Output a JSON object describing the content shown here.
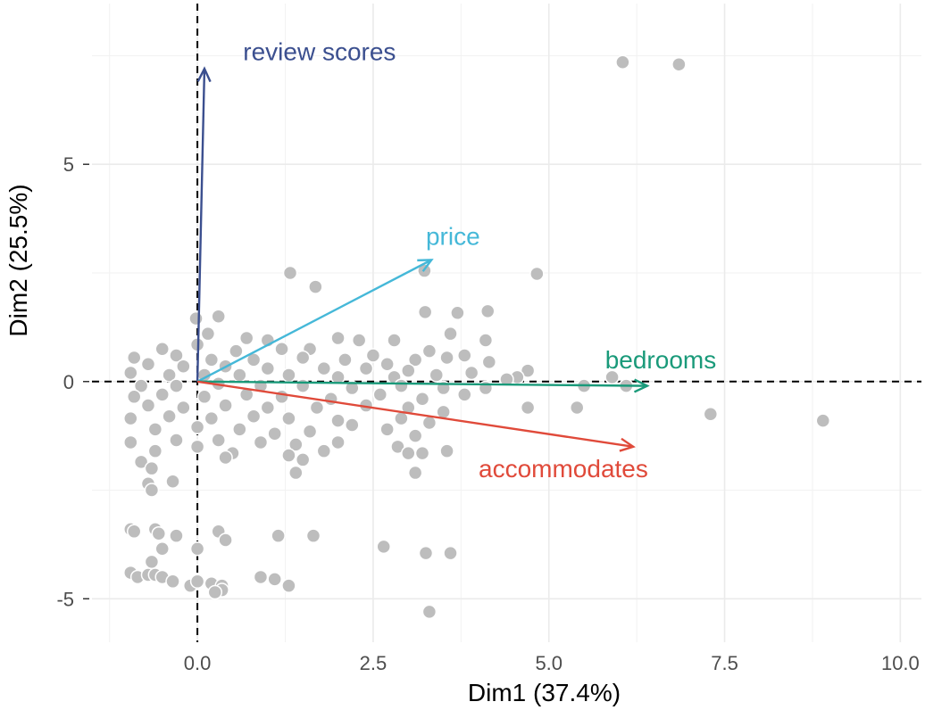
{
  "chart_data": {
    "type": "scatter",
    "title": "",
    "xlabel": "Dim1 (37.4%)",
    "ylabel": "Dim2 (25.5%)",
    "xlim": [
      -1.5,
      10.3
    ],
    "ylim": [
      -6.0,
      8.7
    ],
    "x_ticks": [
      0.0,
      2.5,
      5.0,
      7.5,
      10.0
    ],
    "x_tick_labels": [
      "0.0",
      "2.5",
      "5.0",
      "7.5",
      "10.0"
    ],
    "y_ticks": [
      -5,
      0,
      5
    ],
    "y_tick_labels": [
      "-5",
      "0",
      "5"
    ],
    "grid": true,
    "reference_lines": {
      "x": 0,
      "y": 0,
      "style": "dashed"
    },
    "point_color": "#bdbdbd",
    "points": [
      [
        6.05,
        7.35
      ],
      [
        6.85,
        7.3
      ],
      [
        1.32,
        2.5
      ],
      [
        1.68,
        2.18
      ],
      [
        3.23,
        2.55
      ],
      [
        4.83,
        2.48
      ],
      [
        3.24,
        1.6
      ],
      [
        3.7,
        1.58
      ],
      [
        4.13,
        1.62
      ],
      [
        -0.02,
        1.45
      ],
      [
        0.3,
        1.5
      ],
      [
        0.15,
        1.1
      ],
      [
        0.7,
        1.0
      ],
      [
        1.0,
        0.95
      ],
      [
        2.0,
        1.0
      ],
      [
        2.3,
        0.95
      ],
      [
        2.8,
        0.95
      ],
      [
        3.6,
        1.1
      ],
      [
        4.1,
        0.95
      ],
      [
        0.0,
        0.85
      ],
      [
        0.55,
        0.7
      ],
      [
        1.2,
        0.75
      ],
      [
        1.6,
        0.75
      ],
      [
        2.5,
        0.6
      ],
      [
        3.3,
        0.7
      ],
      [
        3.8,
        0.6
      ],
      [
        -0.5,
        0.75
      ],
      [
        -0.9,
        0.55
      ],
      [
        -0.3,
        0.6
      ],
      [
        0.2,
        0.5
      ],
      [
        0.8,
        0.5
      ],
      [
        1.5,
        0.55
      ],
      [
        2.1,
        0.5
      ],
      [
        2.7,
        0.4
      ],
      [
        3.1,
        0.5
      ],
      [
        3.55,
        0.55
      ],
      [
        4.15,
        0.45
      ],
      [
        4.7,
        0.25
      ],
      [
        4.55,
        0.1
      ],
      [
        5.9,
        0.1
      ],
      [
        -0.7,
        0.4
      ],
      [
        -0.2,
        0.35
      ],
      [
        0.4,
        0.35
      ],
      [
        1.0,
        0.3
      ],
      [
        1.8,
        0.3
      ],
      [
        2.4,
        0.3
      ],
      [
        3.0,
        0.25
      ],
      [
        3.9,
        0.2
      ],
      [
        -0.95,
        0.2
      ],
      [
        -0.4,
        0.15
      ],
      [
        0.1,
        0.15
      ],
      [
        0.6,
        0.15
      ],
      [
        1.3,
        0.15
      ],
      [
        2.0,
        0.1
      ],
      [
        2.8,
        0.1
      ],
      [
        3.4,
        0.15
      ],
      [
        4.4,
        0.05
      ],
      [
        -0.8,
        -0.1
      ],
      [
        -0.3,
        -0.1
      ],
      [
        0.3,
        -0.05
      ],
      [
        0.9,
        -0.1
      ],
      [
        1.5,
        -0.1
      ],
      [
        2.2,
        -0.15
      ],
      [
        2.9,
        -0.1
      ],
      [
        3.5,
        -0.15
      ],
      [
        4.1,
        -0.15
      ],
      [
        5.5,
        -0.1
      ],
      [
        6.1,
        -0.1
      ],
      [
        -0.9,
        -0.35
      ],
      [
        -0.5,
        -0.3
      ],
      [
        0.1,
        -0.35
      ],
      [
        0.7,
        -0.3
      ],
      [
        1.2,
        -0.35
      ],
      [
        1.9,
        -0.4
      ],
      [
        2.6,
        -0.3
      ],
      [
        3.2,
        -0.4
      ],
      [
        3.8,
        -0.3
      ],
      [
        -0.7,
        -0.55
      ],
      [
        -0.2,
        -0.6
      ],
      [
        0.4,
        -0.55
      ],
      [
        1.0,
        -0.6
      ],
      [
        1.7,
        -0.6
      ],
      [
        2.4,
        -0.55
      ],
      [
        3.0,
        -0.6
      ],
      [
        3.5,
        -0.7
      ],
      [
        4.7,
        -0.6
      ],
      [
        5.4,
        -0.6
      ],
      [
        7.3,
        -0.75
      ],
      [
        8.9,
        -0.9
      ],
      [
        -0.95,
        -0.85
      ],
      [
        -0.4,
        -0.8
      ],
      [
        0.2,
        -0.85
      ],
      [
        0.8,
        -0.8
      ],
      [
        1.3,
        -0.85
      ],
      [
        2.0,
        -0.9
      ],
      [
        2.9,
        -0.85
      ],
      [
        3.3,
        -0.95
      ],
      [
        -0.6,
        -1.1
      ],
      [
        0.0,
        -1.05
      ],
      [
        0.6,
        -1.1
      ],
      [
        1.1,
        -1.2
      ],
      [
        1.6,
        -1.15
      ],
      [
        2.2,
        -1.0
      ],
      [
        2.7,
        -1.1
      ],
      [
        3.1,
        -1.25
      ],
      [
        -0.95,
        -1.4
      ],
      [
        -0.3,
        -1.35
      ],
      [
        0.3,
        -1.35
      ],
      [
        0.9,
        -1.4
      ],
      [
        1.4,
        -1.45
      ],
      [
        2.0,
        -1.4
      ],
      [
        2.85,
        -1.5
      ],
      [
        3.55,
        -1.6
      ],
      [
        -0.6,
        -1.6
      ],
      [
        0.0,
        -1.5
      ],
      [
        0.5,
        -1.65
      ],
      [
        1.3,
        -1.7
      ],
      [
        1.8,
        -1.6
      ],
      [
        3.0,
        -1.65
      ],
      [
        3.2,
        -1.65
      ],
      [
        -0.8,
        -1.85
      ],
      [
        0.4,
        -1.75
      ],
      [
        1.5,
        -1.8
      ],
      [
        -0.65,
        -2.0
      ],
      [
        1.4,
        -2.1
      ],
      [
        3.1,
        -2.1
      ],
      [
        -0.7,
        -2.35
      ],
      [
        -0.35,
        -2.3
      ],
      [
        -0.65,
        -2.5
      ],
      [
        -0.95,
        -3.4
      ],
      [
        -0.6,
        -3.4
      ],
      [
        -0.9,
        -3.45
      ],
      [
        -0.55,
        -3.5
      ],
      [
        -0.3,
        -3.55
      ],
      [
        0.3,
        -3.45
      ],
      [
        0.4,
        -3.65
      ],
      [
        1.15,
        -3.55
      ],
      [
        1.65,
        -3.55
      ],
      [
        -0.5,
        -3.85
      ],
      [
        0.0,
        -3.85
      ],
      [
        2.65,
        -3.8
      ],
      [
        3.25,
        -3.95
      ],
      [
        3.6,
        -3.95
      ],
      [
        -0.65,
        -4.15
      ],
      [
        -0.95,
        -4.4
      ],
      [
        -0.85,
        -4.5
      ],
      [
        -0.7,
        -4.45
      ],
      [
        -0.6,
        -4.45
      ],
      [
        -0.5,
        -4.5
      ],
      [
        -0.35,
        -4.6
      ],
      [
        -0.1,
        -4.7
      ],
      [
        0.0,
        -4.6
      ],
      [
        0.2,
        -4.65
      ],
      [
        0.35,
        -4.7
      ],
      [
        0.9,
        -4.5
      ],
      [
        1.1,
        -4.55
      ],
      [
        1.3,
        -4.7
      ],
      [
        0.35,
        -4.8
      ],
      [
        0.25,
        -4.85
      ],
      [
        3.3,
        -5.3
      ]
    ],
    "vectors": [
      {
        "label": "review  scores",
        "x": 0.1,
        "y": 7.2,
        "color": "#3b4f8f",
        "label_x": 0.65,
        "label_y": 7.4,
        "anchor": "start"
      },
      {
        "label": "price",
        "x": 3.33,
        "y": 2.8,
        "color": "#45b8d8",
        "label_x": 3.25,
        "label_y": 3.15,
        "anchor": "start"
      },
      {
        "label": "bedrooms",
        "x": 6.4,
        "y": -0.1,
        "color": "#1a9a7a",
        "label_x": 5.8,
        "label_y": 0.3,
        "anchor": "start"
      },
      {
        "label": "accommodates",
        "x": 6.2,
        "y": -1.5,
        "color": "#e04a3a",
        "label_x": 4.0,
        "label_y": -2.2,
        "anchor": "start"
      }
    ]
  }
}
